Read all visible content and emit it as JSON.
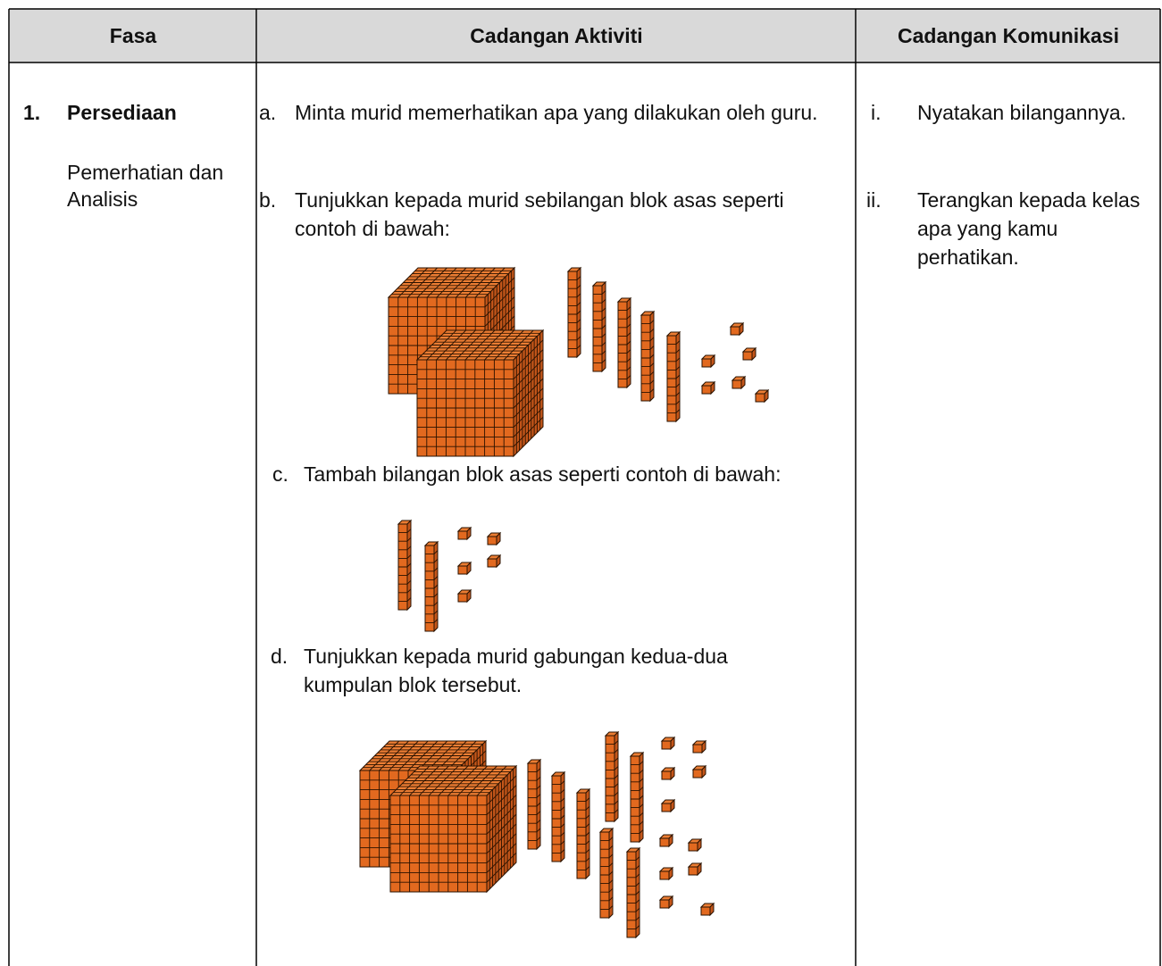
{
  "header": {
    "columns": [
      "Fasa",
      "Cadangan Aktiviti",
      "Cadangan Komunikasi"
    ]
  },
  "rows": [
    {
      "phase": {
        "number": "1.",
        "title": "Persediaan",
        "subtitle": "Pemerhatian dan Analisis"
      },
      "activities": [
        {
          "marker": "a.",
          "text": "Minta murid memerhatikan apa yang dilakukan oleh guru."
        },
        {
          "marker": "b.",
          "text": "Tunjukkan kepada murid sebilangan blok asas seperti contoh di bawah:"
        },
        {
          "marker": "c.",
          "text": "Tambah bilangan blok asas seperti contoh di bawah:"
        },
        {
          "marker": "d.",
          "text": "Tunjukkan kepada murid gabungan kedua-dua kumpulan blok tersebut."
        }
      ],
      "communications": [
        {
          "marker": "i.",
          "text": "Nyatakan bilangannya."
        },
        {
          "marker": "ii.",
          "text": "Terangkan kepada kelas apa yang kamu perhatikan."
        }
      ]
    }
  ]
}
